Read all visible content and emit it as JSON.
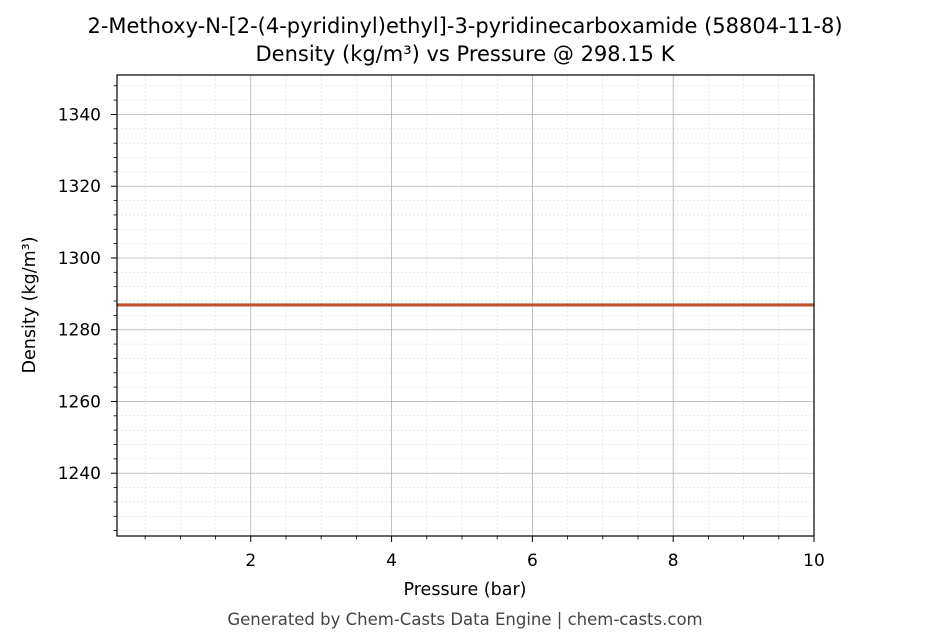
{
  "chart_data": {
    "type": "line",
    "title": "2-Methoxy-N-[2-(4-pyridinyl)ethyl]-3-pyridinecarboxamide (58804-11-8)",
    "subtitle": "Density (kg/m³) vs Pressure @ 298.15 K",
    "xlabel": "Pressure (bar)",
    "ylabel": "Density (kg/m³)",
    "xlim": [
      0.1,
      10
    ],
    "ylim": [
      1222.5,
      1351
    ],
    "x_ticks": [
      2,
      4,
      6,
      8,
      10
    ],
    "y_ticks": [
      1240,
      1260,
      1280,
      1300,
      1320,
      1340
    ],
    "grid": true,
    "legend": "none",
    "series": [
      {
        "color": "#c0522a",
        "x": [
          0.1,
          1,
          2,
          3,
          4,
          5,
          6,
          7,
          8,
          9,
          10
        ],
        "y": [
          1286.9,
          1286.9,
          1286.9,
          1286.9,
          1286.9,
          1286.9,
          1286.9,
          1286.9,
          1286.9,
          1286.9,
          1286.9
        ]
      }
    ]
  },
  "footer": "Generated by Chem-Casts Data Engine | chem-casts.com"
}
